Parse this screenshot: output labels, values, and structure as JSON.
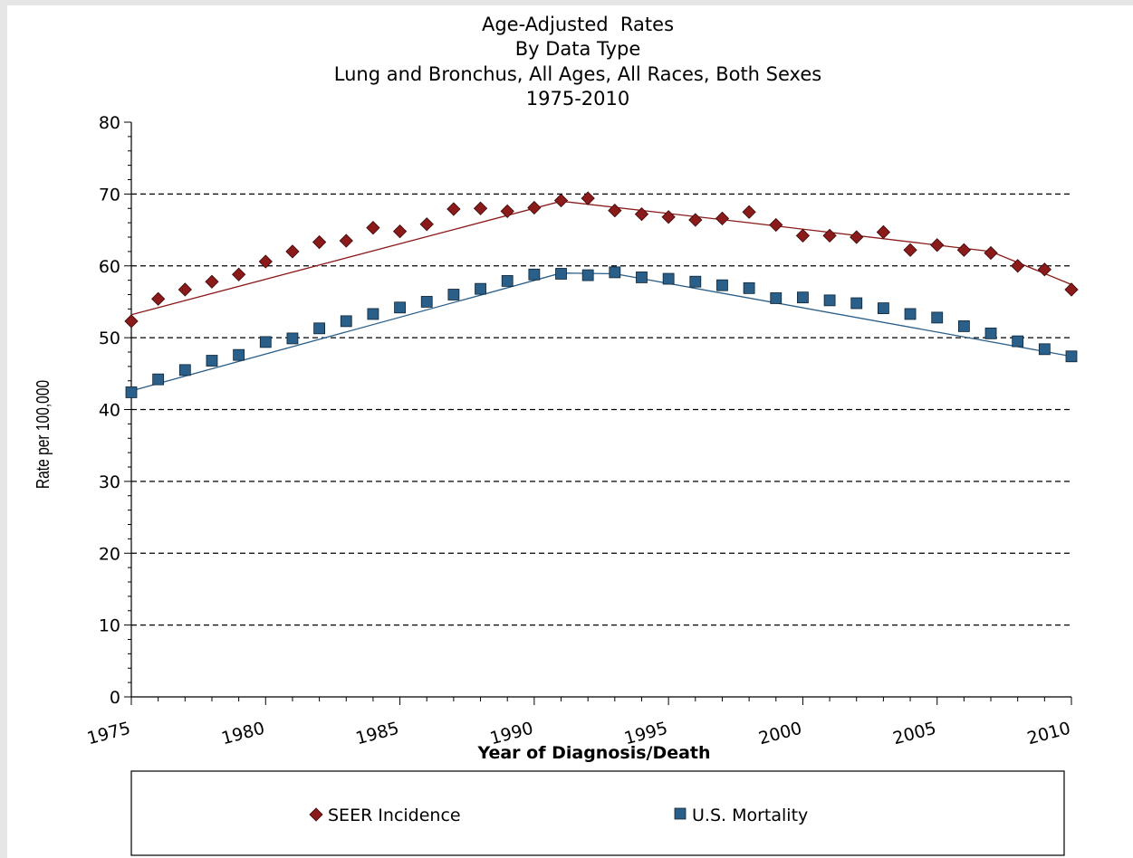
{
  "chart_data": {
    "type": "line",
    "title_lines": [
      "Age-Adjusted  Rates",
      "By Data Type",
      "Lung and Bronchus, All Ages, All Races, Both Sexes",
      "1975-2010"
    ],
    "xlabel": "Year of Diagnosis/Death",
    "ylabel": "Rate per 100,000",
    "xlim": [
      1975,
      2010
    ],
    "ylim": [
      0,
      80
    ],
    "x_ticks": [
      1975,
      1980,
      1985,
      1990,
      1995,
      2000,
      2005,
      2010
    ],
    "y_ticks": [
      0,
      10,
      20,
      30,
      40,
      50,
      60,
      70,
      80
    ],
    "grid": "horizontal dashed",
    "legend_position": "bottom",
    "x": [
      1975,
      1976,
      1977,
      1978,
      1979,
      1980,
      1981,
      1982,
      1983,
      1984,
      1985,
      1986,
      1987,
      1988,
      1989,
      1990,
      1991,
      1992,
      1993,
      1994,
      1995,
      1996,
      1997,
      1998,
      1999,
      2000,
      2001,
      2002,
      2003,
      2004,
      2005,
      2006,
      2007,
      2008,
      2009,
      2010
    ],
    "series": [
      {
        "name": "SEER Incidence",
        "marker": "diamond",
        "color": "#8b1a1a",
        "values": [
          52.3,
          55.4,
          56.7,
          57.8,
          58.8,
          60.6,
          62.0,
          63.3,
          63.5,
          65.3,
          64.8,
          65.8,
          67.9,
          68.0,
          67.6,
          68.1,
          69.1,
          69.4,
          67.7,
          67.2,
          66.8,
          66.4,
          66.6,
          67.5,
          65.7,
          64.2,
          64.2,
          64.0,
          64.7,
          62.2,
          62.9,
          62.2,
          61.8,
          60.0,
          59.5,
          56.7
        ],
        "trend_x": [
          1975,
          1991,
          1998,
          2007,
          2010
        ],
        "trend_y": [
          53.2,
          69.0,
          66.0,
          62.0,
          57.4
        ]
      },
      {
        "name": "U.S. Mortality",
        "marker": "square",
        "color": "#2a5f8a",
        "values": [
          42.4,
          44.2,
          45.5,
          46.8,
          47.6,
          49.4,
          49.9,
          51.3,
          52.3,
          53.3,
          54.2,
          55.0,
          56.0,
          56.8,
          57.9,
          58.8,
          58.9,
          58.7,
          59.1,
          58.4,
          58.2,
          57.8,
          57.3,
          56.9,
          55.5,
          55.6,
          55.2,
          54.8,
          54.1,
          53.3,
          52.8,
          51.6,
          50.6,
          49.5,
          48.4,
          47.4
        ],
        "trend_x": [
          1975,
          1991,
          1993,
          2010
        ],
        "trend_y": [
          42.6,
          59.0,
          58.9,
          47.4
        ]
      }
    ]
  }
}
